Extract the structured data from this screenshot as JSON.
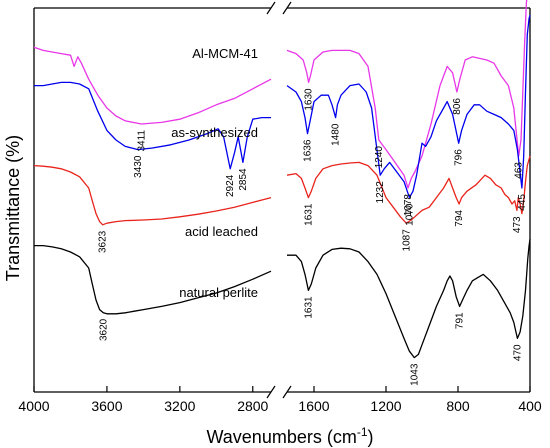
{
  "chart_data": {
    "type": "line",
    "xlabel": "Wavenumbers (cm",
    "xlabel_sup": "-1",
    "xlabel_close": ")",
    "ylabel": "Transmittance (%)",
    "x_axis": {
      "reversed": true,
      "broken": true,
      "left_range": [
        4000,
        2700
      ],
      "right_range": [
        1750,
        400
      ],
      "ticks": [
        4000,
        3600,
        3200,
        2800,
        1600,
        1200,
        800,
        400
      ]
    },
    "grid": false,
    "legend": "none (labels placed above each trace)",
    "series": [
      {
        "name": "Al-MCM-41",
        "color": "#e837e8",
        "points": [
          [
            4000,
            74
          ],
          [
            3950,
            73
          ],
          [
            3900,
            72.5
          ],
          [
            3850,
            72
          ],
          [
            3800,
            71.5
          ],
          [
            3780,
            68
          ],
          [
            3760,
            71
          ],
          [
            3740,
            69
          ],
          [
            3700,
            64
          ],
          [
            3650,
            59
          ],
          [
            3600,
            55
          ],
          [
            3550,
            52.5
          ],
          [
            3500,
            51
          ],
          [
            3411,
            50
          ],
          [
            3300,
            50.5
          ],
          [
            3200,
            51.5
          ],
          [
            3100,
            53.5
          ],
          [
            3000,
            56
          ],
          [
            2900,
            58
          ],
          [
            2800,
            61
          ],
          [
            2700,
            64
          ],
          [
            1750,
            73
          ],
          [
            1700,
            72
          ],
          [
            1660,
            70
          ],
          [
            1640,
            66
          ],
          [
            1630,
            63
          ],
          [
            1620,
            65
          ],
          [
            1600,
            70
          ],
          [
            1550,
            72.5
          ],
          [
            1500,
            73
          ],
          [
            1450,
            73
          ],
          [
            1400,
            73
          ],
          [
            1350,
            72
          ],
          [
            1300,
            68
          ],
          [
            1260,
            55
          ],
          [
            1240,
            45
          ],
          [
            1200,
            42
          ],
          [
            1150,
            38
          ],
          [
            1100,
            34
          ],
          [
            1078,
            30
          ],
          [
            1060,
            33
          ],
          [
            1040,
            35
          ],
          [
            1000,
            40
          ],
          [
            950,
            50
          ],
          [
            900,
            62
          ],
          [
            860,
            68
          ],
          [
            830,
            66
          ],
          [
            806,
            60
          ],
          [
            790,
            64
          ],
          [
            760,
            70
          ],
          [
            720,
            71
          ],
          [
            680,
            70.5
          ],
          [
            640,
            70
          ],
          [
            600,
            69
          ],
          [
            560,
            65
          ],
          [
            520,
            62
          ],
          [
            490,
            55
          ],
          [
            463,
            40
          ],
          [
            450,
            45
          ],
          [
            440,
            60
          ],
          [
            430,
            75
          ],
          [
            420,
            88
          ],
          [
            410,
            92
          ],
          [
            400,
            93
          ]
        ],
        "peaks": [
          {
            "label": "3411",
            "x": 3411
          },
          {
            "label": "1630",
            "x": 1630
          },
          {
            "label": "1240",
            "x": 1240
          },
          {
            "label": "1078",
            "x": 1078
          },
          {
            "label": "806",
            "x": 806
          },
          {
            "label": "463",
            "x": 463
          }
        ]
      },
      {
        "name": "as-synthesized",
        "color": "#0000ee",
        "points": [
          [
            4000,
            62
          ],
          [
            3950,
            62
          ],
          [
            3900,
            62.5
          ],
          [
            3850,
            63
          ],
          [
            3800,
            63
          ],
          [
            3750,
            62.5
          ],
          [
            3700,
            61
          ],
          [
            3650,
            54
          ],
          [
            3600,
            48
          ],
          [
            3550,
            45
          ],
          [
            3500,
            43
          ],
          [
            3430,
            42
          ],
          [
            3350,
            42.5
          ],
          [
            3250,
            43.5
          ],
          [
            3150,
            45
          ],
          [
            3050,
            47
          ],
          [
            2990,
            48.5
          ],
          [
            2960,
            46
          ],
          [
            2924,
            36
          ],
          [
            2900,
            41
          ],
          [
            2880,
            46
          ],
          [
            2854,
            38
          ],
          [
            2830,
            46
          ],
          [
            2800,
            51.5
          ],
          [
            2750,
            52
          ],
          [
            2700,
            52
          ],
          [
            1750,
            62
          ],
          [
            1700,
            60
          ],
          [
            1670,
            57
          ],
          [
            1650,
            52
          ],
          [
            1636,
            47
          ],
          [
            1625,
            50
          ],
          [
            1600,
            57
          ],
          [
            1560,
            59
          ],
          [
            1520,
            59
          ],
          [
            1500,
            56
          ],
          [
            1480,
            52
          ],
          [
            1470,
            56
          ],
          [
            1450,
            59
          ],
          [
            1400,
            62
          ],
          [
            1350,
            62.5
          ],
          [
            1310,
            60
          ],
          [
            1280,
            55
          ],
          [
            1255,
            44
          ],
          [
            1232,
            34
          ],
          [
            1210,
            36
          ],
          [
            1180,
            38
          ],
          [
            1140,
            35
          ],
          [
            1100,
            32
          ],
          [
            1070,
            27
          ],
          [
            1050,
            29
          ],
          [
            1030,
            34
          ],
          [
            1000,
            44
          ],
          [
            980,
            43
          ],
          [
            950,
            46
          ],
          [
            920,
            51
          ],
          [
            880,
            55
          ],
          [
            860,
            57
          ],
          [
            830,
            53
          ],
          [
            796,
            44
          ],
          [
            780,
            48
          ],
          [
            750,
            53
          ],
          [
            710,
            56
          ],
          [
            680,
            56
          ],
          [
            640,
            54
          ],
          [
            600,
            53
          ],
          [
            560,
            52
          ],
          [
            520,
            50
          ],
          [
            490,
            48
          ],
          [
            470,
            42
          ],
          [
            445,
            30
          ],
          [
            435,
            40
          ],
          [
            425,
            60
          ],
          [
            415,
            78
          ],
          [
            405,
            83
          ],
          [
            400,
            84
          ]
        ],
        "peaks": [
          {
            "label": "3430",
            "x": 3430
          },
          {
            "label": "2924",
            "x": 2924
          },
          {
            "label": "2854",
            "x": 2854
          },
          {
            "label": "1636",
            "x": 1636
          },
          {
            "label": "1480",
            "x": 1480
          },
          {
            "label": "1232",
            "x": 1232
          },
          {
            "label": "1070",
            "x": 1070
          },
          {
            "label": "796",
            "x": 796
          },
          {
            "label": "445",
            "x": 445
          }
        ]
      },
      {
        "name": "acid leached",
        "color": "#e8241c",
        "points": [
          [
            4000,
            37
          ],
          [
            3950,
            36.8
          ],
          [
            3900,
            36.5
          ],
          [
            3850,
            36
          ],
          [
            3800,
            35
          ],
          [
            3750,
            33.5
          ],
          [
            3700,
            30
          ],
          [
            3680,
            26
          ],
          [
            3660,
            22
          ],
          [
            3640,
            19.5
          ],
          [
            3623,
            18.5
          ],
          [
            3600,
            19
          ],
          [
            3550,
            19.5
          ],
          [
            3500,
            19.8
          ],
          [
            3400,
            20
          ],
          [
            3300,
            20.3
          ],
          [
            3200,
            21
          ],
          [
            3100,
            21.8
          ],
          [
            3000,
            22.8
          ],
          [
            2900,
            24
          ],
          [
            2800,
            25.5
          ],
          [
            2700,
            27
          ],
          [
            1750,
            34
          ],
          [
            1700,
            34.5
          ],
          [
            1670,
            33
          ],
          [
            1650,
            30
          ],
          [
            1631,
            27
          ],
          [
            1615,
            29
          ],
          [
            1590,
            33
          ],
          [
            1550,
            36
          ],
          [
            1500,
            37
          ],
          [
            1450,
            37.5
          ],
          [
            1400,
            37.8
          ],
          [
            1350,
            38
          ],
          [
            1300,
            37
          ],
          [
            1250,
            34
          ],
          [
            1200,
            27
          ],
          [
            1160,
            24
          ],
          [
            1120,
            21
          ],
          [
            1087,
            19
          ],
          [
            1060,
            20
          ],
          [
            1040,
            21
          ],
          [
            1000,
            23
          ],
          [
            960,
            24
          ],
          [
            920,
            27
          ],
          [
            880,
            30
          ],
          [
            850,
            33
          ],
          [
            830,
            30
          ],
          [
            810,
            27
          ],
          [
            794,
            25
          ],
          [
            780,
            27
          ],
          [
            750,
            29
          ],
          [
            700,
            31
          ],
          [
            650,
            34
          ],
          [
            620,
            33
          ],
          [
            590,
            31
          ],
          [
            560,
            30
          ],
          [
            540,
            28
          ],
          [
            520,
            27
          ],
          [
            500,
            25
          ],
          [
            485,
            26
          ],
          [
            473,
            23
          ],
          [
            465,
            27
          ],
          [
            455,
            25
          ],
          [
            445,
            22
          ],
          [
            435,
            26
          ],
          [
            425,
            32
          ],
          [
            415,
            37
          ],
          [
            405,
            39
          ],
          [
            400,
            40
          ]
        ],
        "peaks": [
          {
            "label": "3623",
            "x": 3623
          },
          {
            "label": "1631",
            "x": 1631
          },
          {
            "label": "1087",
            "x": 1087
          },
          {
            "label": "794",
            "x": 794
          },
          {
            "label": "473",
            "x": 473
          }
        ]
      },
      {
        "name": "natural perlite",
        "color": "#000000",
        "points": [
          [
            4000,
            12
          ],
          [
            3950,
            12
          ],
          [
            3900,
            11.6
          ],
          [
            3850,
            11
          ],
          [
            3800,
            10
          ],
          [
            3750,
            8.5
          ],
          [
            3700,
            5
          ],
          [
            3680,
            0
          ],
          [
            3660,
            -5
          ],
          [
            3640,
            -8
          ],
          [
            3620,
            -9
          ],
          [
            3600,
            -9.3
          ],
          [
            3550,
            -9.3
          ],
          [
            3500,
            -9
          ],
          [
            3450,
            -8.5
          ],
          [
            3400,
            -8
          ],
          [
            3300,
            -7
          ],
          [
            3200,
            -5.8
          ],
          [
            3100,
            -4.3
          ],
          [
            3000,
            -2.8
          ],
          [
            2900,
            -0.8
          ],
          [
            2800,
            1.5
          ],
          [
            2700,
            4
          ],
          [
            1750,
            9
          ],
          [
            1700,
            9
          ],
          [
            1670,
            7
          ],
          [
            1650,
            3
          ],
          [
            1631,
            -2
          ],
          [
            1615,
            0
          ],
          [
            1590,
            5
          ],
          [
            1550,
            9
          ],
          [
            1500,
            10.8
          ],
          [
            1450,
            11.2
          ],
          [
            1400,
            11
          ],
          [
            1350,
            10
          ],
          [
            1300,
            7
          ],
          [
            1250,
            3
          ],
          [
            1200,
            -3
          ],
          [
            1150,
            -10
          ],
          [
            1100,
            -17
          ],
          [
            1070,
            -21
          ],
          [
            1043,
            -23
          ],
          [
            1020,
            -22
          ],
          [
            1000,
            -19
          ],
          [
            960,
            -13
          ],
          [
            920,
            -7
          ],
          [
            880,
            -2
          ],
          [
            860,
            1
          ],
          [
            845,
            2.5
          ],
          [
            830,
            1
          ],
          [
            810,
            -4
          ],
          [
            791,
            -7
          ],
          [
            775,
            -5
          ],
          [
            750,
            -2
          ],
          [
            720,
            1
          ],
          [
            690,
            2
          ],
          [
            660,
            3
          ],
          [
            620,
            1
          ],
          [
            580,
            -2
          ],
          [
            540,
            -6
          ],
          [
            510,
            -9
          ],
          [
            490,
            -12
          ],
          [
            470,
            -17
          ],
          [
            455,
            -15
          ],
          [
            440,
            -10
          ],
          [
            425,
            -2
          ],
          [
            412,
            8
          ],
          [
            405,
            12
          ],
          [
            400,
            14
          ]
        ],
        "peaks": [
          {
            "label": "3620",
            "x": 3620
          },
          {
            "label": "1631",
            "x": 1631
          },
          {
            "label": "1043",
            "x": 1043
          },
          {
            "label": "791",
            "x": 791
          },
          {
            "label": "470",
            "x": 470
          }
        ]
      }
    ]
  }
}
